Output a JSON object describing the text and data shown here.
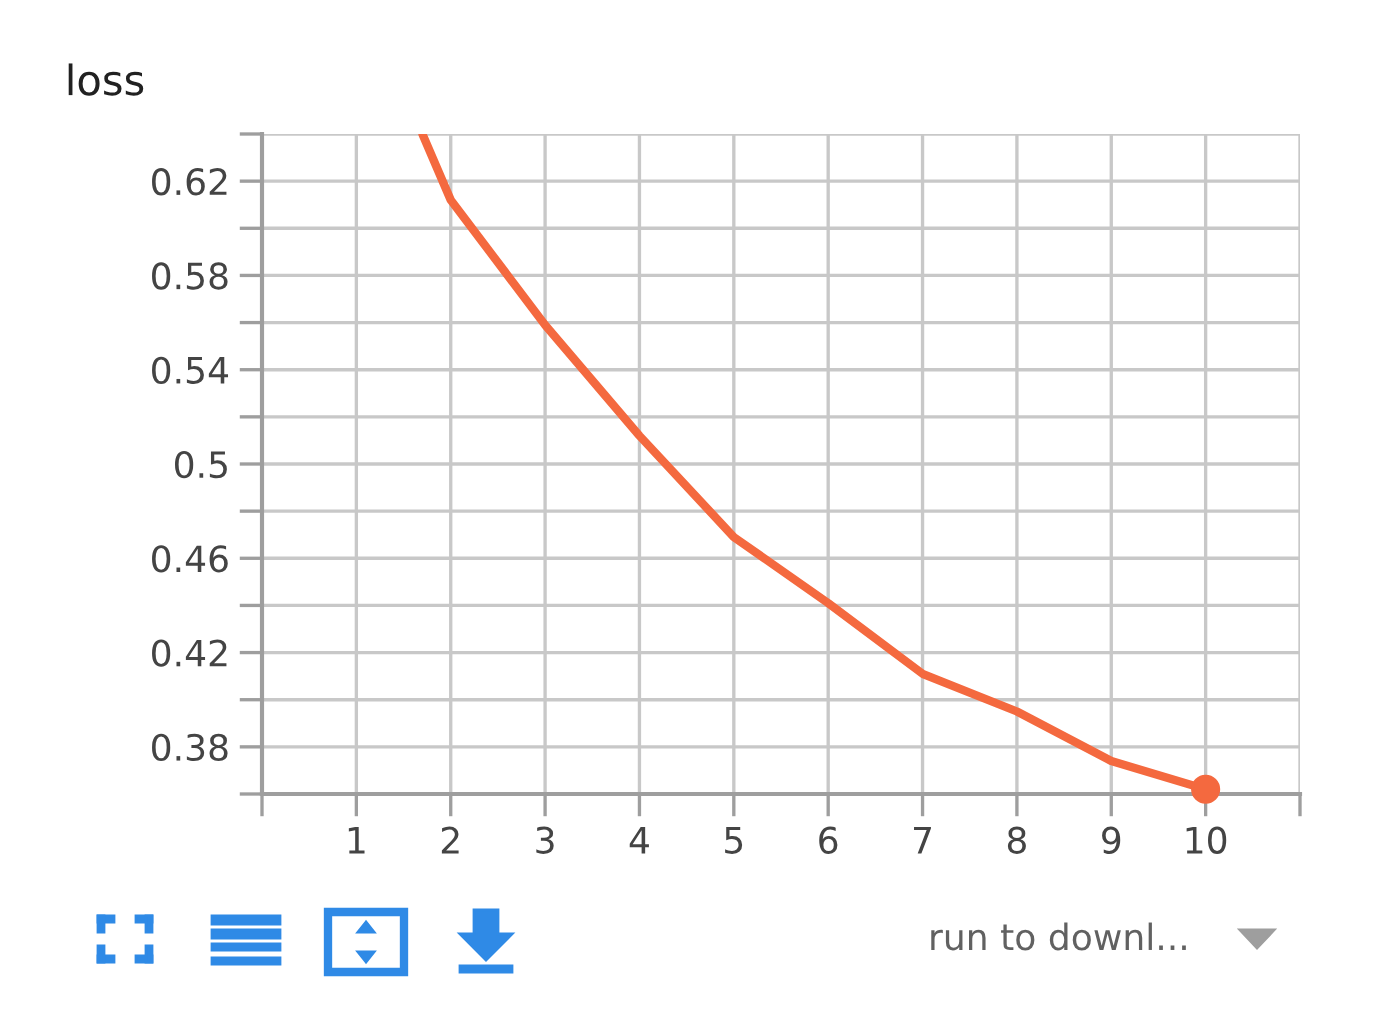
{
  "chart_data": {
    "type": "line",
    "title": "loss",
    "series": [
      {
        "color": "#f4693f",
        "x": [
          1.7,
          2,
          3,
          4,
          5,
          6,
          7,
          8,
          9,
          10
        ],
        "values": [
          0.64,
          0.612,
          0.559,
          0.512,
          0.469,
          0.441,
          0.411,
          0.395,
          0.374,
          0.362
        ]
      },
      {
        "type": "scatter",
        "color": "#f4693f",
        "x": [
          10
        ],
        "values": [
          0.362
        ]
      }
    ],
    "xlim": [
      0,
      11
    ],
    "xticks": [
      {
        "value": 0,
        "label": null
      },
      1,
      2,
      3,
      4,
      5,
      6,
      7,
      8,
      9,
      10,
      {
        "value": 11,
        "label": null
      }
    ],
    "ylim": [
      0.36,
      0.64
    ],
    "yticks": [
      {
        "value": 0.36,
        "label": null
      },
      0.38,
      {
        "value": 0.4,
        "label": null
      },
      0.42,
      {
        "value": 0.44,
        "label": null
      },
      0.46,
      {
        "value": 0.48,
        "label": null
      },
      0.5,
      {
        "value": 0.52,
        "label": null
      },
      0.54,
      {
        "value": 0.56,
        "label": null
      },
      0.58,
      {
        "value": 0.6,
        "label": null
      },
      0.62,
      {
        "value": 0.64,
        "label": null
      }
    ],
    "grid": true,
    "annotations": [
      "run to downl..."
    ]
  }
}
